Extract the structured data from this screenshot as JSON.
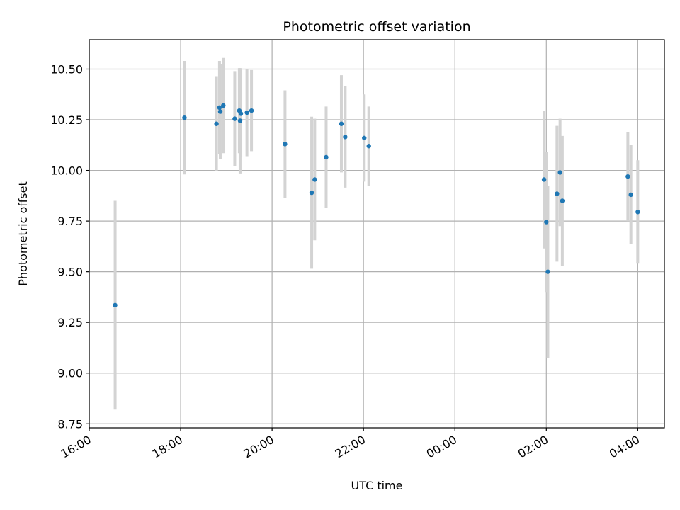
{
  "chart_data": {
    "type": "scatter",
    "title": "Photometric offset variation",
    "xlabel": "UTC time",
    "ylabel": "Photometric offset",
    "x_axis": {
      "kind": "time",
      "range": [
        "16:00",
        "04:35"
      ],
      "ticks": [
        "16:00",
        "18:00",
        "20:00",
        "22:00",
        "00:00",
        "02:00",
        "04:00"
      ]
    },
    "y_axis": {
      "range": [
        8.73,
        10.645
      ],
      "ticks": [
        "8.75",
        "9.00",
        "9.25",
        "9.50",
        "9.75",
        "10.00",
        "10.25",
        "10.50"
      ]
    },
    "grid": true,
    "legend": "none",
    "colors": {
      "points": "#1f77b4",
      "errorbars": "#d3d3d3",
      "grid": "#b0b0b0"
    },
    "points": [
      {
        "x": "16:34",
        "y": 9.335,
        "err": 0.515
      },
      {
        "x": "18:05",
        "y": 10.26,
        "err": 0.28
      },
      {
        "x": "18:47",
        "y": 10.23,
        "err": 0.235
      },
      {
        "x": "18:51",
        "y": 10.31,
        "err": 0.23
      },
      {
        "x": "18:52",
        "y": 10.29,
        "err": 0.235
      },
      {
        "x": "18:56",
        "y": 10.32,
        "err": 0.235
      },
      {
        "x": "19:11",
        "y": 10.255,
        "err": 0.235
      },
      {
        "x": "19:17",
        "y": 10.295,
        "err": 0.21
      },
      {
        "x": "19:18",
        "y": 10.245,
        "err": 0.26
      },
      {
        "x": "19:19",
        "y": 10.28,
        "err": 0.215
      },
      {
        "x": "19:27",
        "y": 10.285,
        "err": 0.215
      },
      {
        "x": "19:33",
        "y": 10.295,
        "err": 0.2
      },
      {
        "x": "20:17",
        "y": 10.13,
        "err": 0.265
      },
      {
        "x": "20:52",
        "y": 9.89,
        "err": 0.375
      },
      {
        "x": "20:56",
        "y": 9.955,
        "err": 0.3
      },
      {
        "x": "21:11",
        "y": 10.065,
        "err": 0.25
      },
      {
        "x": "21:31",
        "y": 10.23,
        "err": 0.24
      },
      {
        "x": "21:36",
        "y": 10.165,
        "err": 0.25
      },
      {
        "x": "22:01",
        "y": 10.16,
        "err": 0.215
      },
      {
        "x": "22:07",
        "y": 10.12,
        "err": 0.195
      },
      {
        "x": "01:57",
        "y": 9.955,
        "err": 0.34
      },
      {
        "x": "02:00",
        "y": 9.745,
        "err": 0.345
      },
      {
        "x": "02:02",
        "y": 9.5,
        "err": 0.425
      },
      {
        "x": "02:14",
        "y": 9.885,
        "err": 0.335
      },
      {
        "x": "02:18",
        "y": 9.99,
        "err": 0.265
      },
      {
        "x": "02:21",
        "y": 9.85,
        "err": 0.32
      },
      {
        "x": "03:47",
        "y": 9.97,
        "err": 0.22
      },
      {
        "x": "03:51",
        "y": 9.88,
        "err": 0.245
      },
      {
        "x": "04:00",
        "y": 9.795,
        "err": 0.255
      }
    ]
  }
}
